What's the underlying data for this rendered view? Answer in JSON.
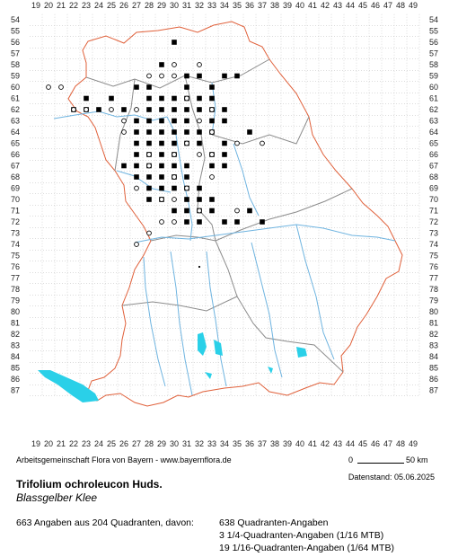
{
  "map": {
    "x_labels": [
      "19",
      "20",
      "21",
      "22",
      "23",
      "24",
      "25",
      "26",
      "27",
      "28",
      "29",
      "30",
      "31",
      "32",
      "33",
      "34",
      "35",
      "36",
      "37",
      "38",
      "39",
      "40",
      "41",
      "42",
      "43",
      "44",
      "45",
      "46",
      "47",
      "48",
      "49"
    ],
    "y_labels": [
      "54",
      "55",
      "56",
      "57",
      "58",
      "59",
      "60",
      "61",
      "62",
      "63",
      "64",
      "65",
      "66",
      "67",
      "68",
      "69",
      "70",
      "71",
      "72",
      "73",
      "74",
      "75",
      "76",
      "77",
      "78",
      "79",
      "80",
      "81",
      "82",
      "83",
      "84",
      "85",
      "86",
      "87"
    ],
    "colors": {
      "grid": "#b9b9b9",
      "state_border": "#e0603a",
      "district_border": "#8c8c8c",
      "rivers": "#6fb4e0",
      "lakes": "#2ad0e8",
      "filled_marker": "#000000",
      "open_marker": "#000000"
    },
    "markers_filled": [
      [
        30,
        56
      ],
      [
        29,
        58
      ],
      [
        32,
        59
      ],
      [
        31,
        59
      ],
      [
        27,
        60
      ],
      [
        28,
        60
      ],
      [
        31,
        60
      ],
      [
        33,
        60
      ],
      [
        34,
        59
      ],
      [
        35,
        59
      ],
      [
        23,
        61
      ],
      [
        28,
        61
      ],
      [
        29,
        61
      ],
      [
        30,
        61
      ],
      [
        31,
        61
      ],
      [
        32,
        61
      ],
      [
        33,
        61
      ],
      [
        26,
        62
      ],
      [
        28,
        62
      ],
      [
        29,
        62
      ],
      [
        30,
        62
      ],
      [
        31,
        62
      ],
      [
        32,
        62
      ],
      [
        33,
        62
      ],
      [
        34,
        62
      ],
      [
        27,
        63
      ],
      [
        28,
        63
      ],
      [
        29,
        63
      ],
      [
        30,
        63
      ],
      [
        31,
        63
      ],
      [
        33,
        63
      ],
      [
        34,
        63
      ],
      [
        27,
        64
      ],
      [
        28,
        64
      ],
      [
        29,
        64
      ],
      [
        30,
        64
      ],
      [
        31,
        64
      ],
      [
        32,
        64
      ],
      [
        33,
        64
      ],
      [
        36,
        64
      ],
      [
        27,
        65
      ],
      [
        28,
        65
      ],
      [
        29,
        65
      ],
      [
        30,
        65
      ],
      [
        31,
        65
      ],
      [
        32,
        65
      ],
      [
        34,
        65
      ],
      [
        27,
        66
      ],
      [
        28,
        66
      ],
      [
        29,
        66
      ],
      [
        30,
        66
      ],
      [
        33,
        66
      ],
      [
        34,
        66
      ],
      [
        27,
        67
      ],
      [
        28,
        67
      ],
      [
        29,
        67
      ],
      [
        30,
        67
      ],
      [
        26,
        67
      ],
      [
        31,
        67
      ],
      [
        33,
        67
      ],
      [
        34,
        67
      ],
      [
        27,
        68
      ],
      [
        28,
        68
      ],
      [
        29,
        68
      ],
      [
        30,
        68
      ],
      [
        31,
        68
      ],
      [
        28,
        69
      ],
      [
        29,
        69
      ],
      [
        30,
        69
      ],
      [
        31,
        69
      ],
      [
        32,
        69
      ],
      [
        28,
        70
      ],
      [
        29,
        70
      ],
      [
        31,
        70
      ],
      [
        32,
        70
      ],
      [
        33,
        70
      ],
      [
        30,
        71
      ],
      [
        31,
        71
      ],
      [
        32,
        71
      ],
      [
        33,
        71
      ],
      [
        36,
        71
      ],
      [
        31,
        72
      ],
      [
        32,
        72
      ],
      [
        34,
        72
      ],
      [
        35,
        72
      ],
      [
        37,
        72
      ],
      [
        23,
        62
      ],
      [
        24,
        62
      ],
      [
        22,
        62
      ],
      [
        25,
        61
      ]
    ],
    "markers_open": [
      [
        20,
        60
      ],
      [
        21,
        60
      ],
      [
        22,
        62
      ],
      [
        23,
        62
      ],
      [
        25,
        62
      ],
      [
        27,
        62
      ],
      [
        26,
        63
      ],
      [
        28,
        59
      ],
      [
        29,
        59
      ],
      [
        30,
        59
      ],
      [
        30,
        58
      ],
      [
        32,
        58
      ],
      [
        33,
        64
      ],
      [
        31,
        65
      ],
      [
        28,
        66
      ],
      [
        30,
        66
      ],
      [
        32,
        66
      ],
      [
        33,
        66
      ],
      [
        35,
        65
      ],
      [
        37,
        65
      ],
      [
        30,
        68
      ],
      [
        33,
        68
      ],
      [
        27,
        69
      ],
      [
        29,
        70
      ],
      [
        30,
        70
      ],
      [
        32,
        71
      ],
      [
        35,
        71
      ],
      [
        29,
        72
      ],
      [
        30,
        72
      ],
      [
        28,
        73
      ],
      [
        27,
        74
      ],
      [
        31,
        61
      ],
      [
        33,
        62
      ],
      [
        32,
        63
      ],
      [
        31,
        69
      ],
      [
        28,
        67
      ],
      [
        26,
        64
      ]
    ],
    "markers_small": [
      [
        32,
        76
      ]
    ]
  },
  "legend": {
    "credit": "Arbeitsgemeinschaft Flora von Bayern - www.bayernflora.de",
    "scale_zero": "0",
    "scale_km": "50 km",
    "date": "Datenstand: 05.06.2025",
    "title": "Trifolium ochroleucon Huds.",
    "subtitle": "Blassgelber Klee",
    "summary": "663 Angaben aus 204 Quadranten, davon:",
    "q1": "638 Quadranten-Angaben",
    "q2": "3 1/4-Quadranten-Angaben (1/16 MTB)",
    "q3": "19 1/16-Quadranten-Angaben (1/64 MTB)"
  }
}
